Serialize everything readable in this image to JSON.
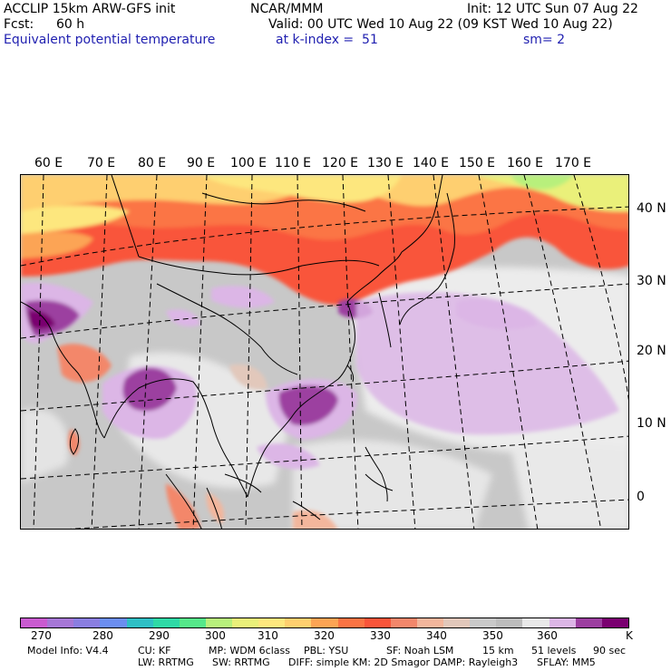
{
  "header": {
    "model": "ACCLIP 15km ARW-GFS init",
    "org": "NCAR/MMM",
    "init": "Init: 12 UTC Sun 07 Aug 22",
    "fcst_label": "Fcst:",
    "fcst_value": "60 h",
    "valid": "Valid: 00 UTC Wed 10 Aug 22 (09 KST Wed 10 Aug 22)",
    "field": "Equivalent potential temperature",
    "level": "at k-index =  51",
    "smooth": "sm= 2"
  },
  "map": {
    "lon_labels": [
      "60 E",
      "70 E",
      "80 E",
      "90 E",
      "100 E",
      "110 E",
      "120 E",
      "130 E",
      "140 E",
      "150 E",
      "160 E",
      "170 E"
    ],
    "lat_labels": [
      "40 N",
      "30 N",
      "20 N",
      "10 N",
      "0"
    ]
  },
  "colorbar": {
    "colors": [
      "#c95bd0",
      "#a677d6",
      "#8a7ee0",
      "#6b8ef0",
      "#2fbfc5",
      "#2fd9a6",
      "#56e88a",
      "#b8f07c",
      "#eaf07a",
      "#fde77e",
      "#fecf6f",
      "#fca454",
      "#fb7444",
      "#f9553a",
      "#f3876b",
      "#f3b69c",
      "#e2c8bb",
      "#c9c9c9",
      "#bdbdbd",
      "#e9e9e9",
      "#dcb6e6",
      "#9c3fa0",
      "#7a0070"
    ],
    "labels": [
      "270",
      "280",
      "290",
      "300",
      "310",
      "320",
      "330",
      "340",
      "350",
      "360"
    ],
    "unit": "K"
  },
  "footer": {
    "model_info": "Model Info: V4.4",
    "cu": "CU: KF",
    "mp": "MP: WDM 6class",
    "pbl": "PBL: YSU",
    "sf": "SF: Noah LSM",
    "res": "15 km",
    "levels": "51 levels",
    "dt": "90 sec",
    "lw": "LW: RRTMG",
    "sw": "SW: RRTMG",
    "diff": "DIFF: simple KM: 2D Smagor DAMP: Rayleigh3",
    "sflay": "SFLAY: MM5"
  }
}
